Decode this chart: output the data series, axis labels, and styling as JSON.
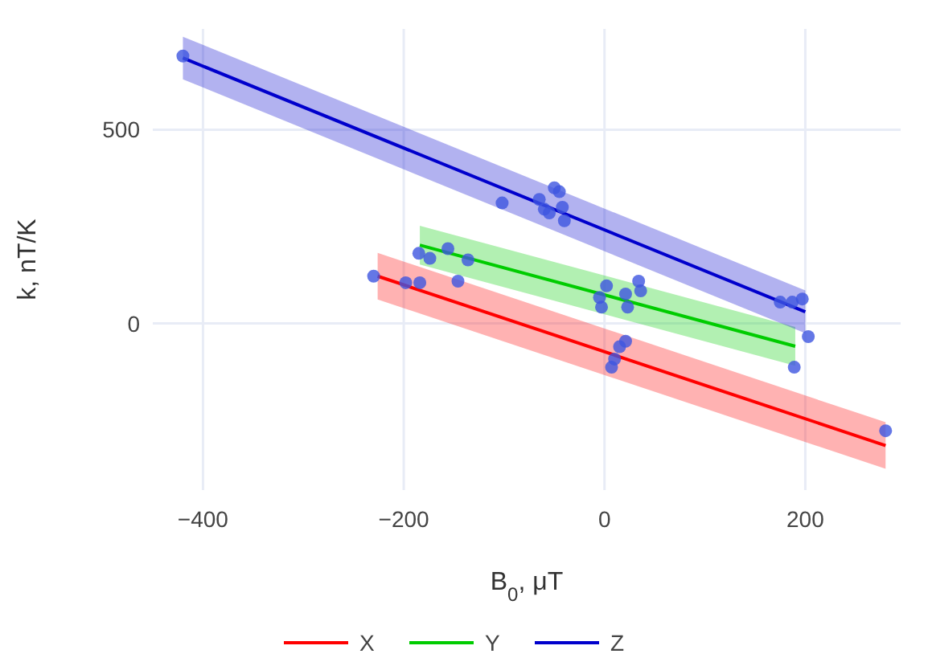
{
  "chart_data": {
    "type": "line",
    "xlabel": "B$_{0}$, μT",
    "ylabel": "k, nT/K",
    "xlim": [
      -450,
      295
    ],
    "ylim": [
      -430,
      760
    ],
    "xticks": [
      -400,
      -200,
      0,
      200
    ],
    "yticks": [
      0,
      500
    ],
    "grid": true,
    "legend": "bottom",
    "line_style": "solid",
    "series": [
      {
        "name": "X",
        "color": "#ff0000",
        "x": [
          -226,
          280
        ],
        "values": [
          122,
          -315
        ],
        "lower": [
          62,
          -375
        ],
        "upper": [
          182,
          -255
        ]
      },
      {
        "name": "Y",
        "color": "#00cc00",
        "x": [
          -184,
          190
        ],
        "values": [
          202,
          -59
        ],
        "lower": [
          152,
          -109
        ],
        "upper": [
          252,
          -9
        ]
      },
      {
        "name": "Z",
        "color": "#0000cc",
        "x": [
          -420,
          200
        ],
        "values": [
          685,
          30
        ],
        "lower": [
          630,
          -25
        ],
        "upper": [
          740,
          85
        ]
      },
      {
        "type": "scatter",
        "marker": "circle",
        "color": "#3d55e0",
        "x": [
          -420,
          -102,
          -65,
          -60,
          -55,
          -50,
          -45,
          -42,
          -40,
          175,
          187,
          197,
          203,
          -185,
          -174,
          -156,
          -136,
          -146,
          2,
          -5,
          -3,
          21,
          23,
          34,
          36,
          189,
          -230,
          -198,
          -184,
          10,
          15,
          7,
          21,
          280
        ],
        "values": [
          690,
          311,
          320,
          295,
          285,
          350,
          340,
          300,
          265,
          55,
          55,
          63,
          -34,
          181,
          168,
          193,
          164,
          109,
          97,
          67,
          42,
          76,
          42,
          109,
          84,
          -113,
          122,
          105,
          105,
          -92,
          -60,
          -113,
          -46,
          -277
        ]
      }
    ]
  }
}
